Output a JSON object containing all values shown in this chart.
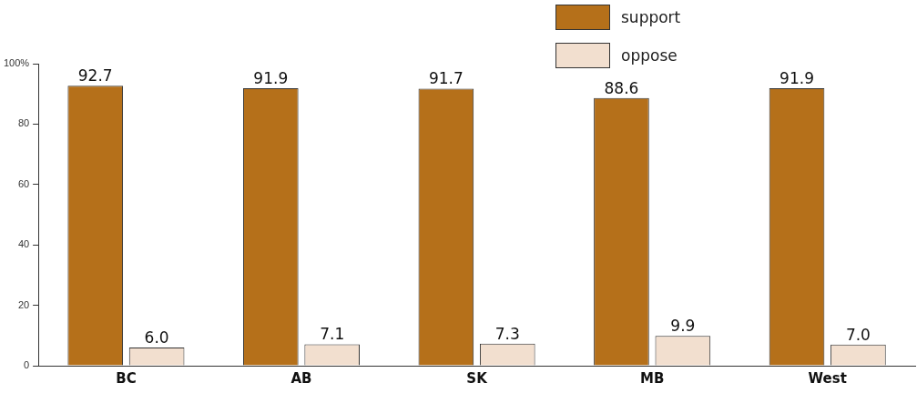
{
  "chart_data": {
    "type": "bar",
    "categories": [
      "BC",
      "AB",
      "SK",
      "MB",
      "West"
    ],
    "series": [
      {
        "name": "support",
        "color": "#b5701a",
        "values": [
          92.7,
          91.9,
          91.7,
          88.6,
          91.9
        ],
        "value_labels": [
          "92.7",
          "91.9",
          "91.7",
          "88.6",
          "91.9"
        ]
      },
      {
        "name": "oppose",
        "color": "#f2dfcf",
        "values": [
          6.0,
          7.1,
          7.3,
          9.9,
          7.0
        ],
        "value_labels": [
          "6.0",
          "7.1",
          "7.3",
          "9.9",
          "7.0"
        ]
      }
    ],
    "ylim": [
      0,
      100
    ],
    "yticks": [
      0,
      20,
      40,
      60,
      80,
      {
        "value": 100,
        "label": "100%"
      }
    ],
    "legend": "top right",
    "grid": false
  }
}
